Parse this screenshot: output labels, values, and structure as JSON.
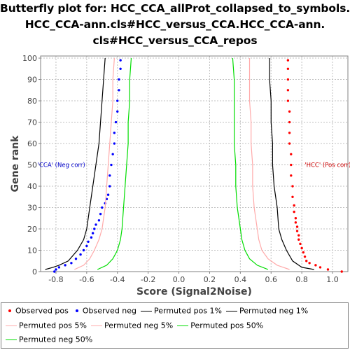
{
  "title_lines": [
    "Butterfly plot for: HCC_CCA_allProt_collapsed_to_symbols.",
    "HCC_CCA-ann.cls#HCC_versus_CCA.HCC_CCA-ann.",
    "cls#HCC_versus_CCA_repos"
  ],
  "chart_data": {
    "type": "scatter",
    "xlabel": "Score (Signal2Noise)",
    "ylabel": "Gene rank",
    "xlim": [
      -0.9,
      1.1
    ],
    "ylim": [
      0,
      101
    ],
    "x_ticks": [
      -0.8,
      -0.6,
      -0.4,
      -0.2,
      0.0,
      0.2,
      0.4,
      0.6,
      0.8,
      1.0
    ],
    "x_tick_labels": [
      "-0.8",
      "-0.6",
      "-0.4",
      "-0.2",
      "0.0",
      "0.2",
      "0.4",
      "0.6",
      "0.8",
      "1.0"
    ],
    "y_ticks": [
      0,
      10,
      20,
      30,
      40,
      50,
      60,
      70,
      80,
      90,
      100
    ],
    "y_tick_labels": [
      "0",
      "10",
      "20",
      "30",
      "40",
      "50",
      "60",
      "70",
      "80",
      "90",
      "100"
    ],
    "grid": true,
    "annotations": [
      {
        "text": "'CCA' (Neg corr)",
        "x": -0.92,
        "y": 50,
        "color": "#0000cc",
        "align": "left"
      },
      {
        "text": "'HCC' (Pos corr)",
        "x": 1.12,
        "y": 50,
        "color": "#cc0000",
        "align": "right"
      }
    ],
    "series": [
      {
        "name": "Observed pos",
        "kind": "points",
        "color": "#ff0000",
        "points": [
          [
            1.06,
            0
          ],
          [
            0.97,
            1
          ],
          [
            0.92,
            2
          ],
          [
            0.89,
            3
          ],
          [
            0.85,
            4
          ],
          [
            0.83,
            5
          ],
          [
            0.82,
            7
          ],
          [
            0.81,
            9
          ],
          [
            0.8,
            11
          ],
          [
            0.79,
            13
          ],
          [
            0.78,
            15
          ],
          [
            0.78,
            17
          ],
          [
            0.77,
            19
          ],
          [
            0.77,
            21
          ],
          [
            0.76,
            23
          ],
          [
            0.76,
            25
          ],
          [
            0.75,
            28
          ],
          [
            0.75,
            31
          ],
          [
            0.74,
            35
          ],
          [
            0.74,
            40
          ],
          [
            0.73,
            45
          ],
          [
            0.73,
            50
          ],
          [
            0.73,
            55
          ],
          [
            0.72,
            60
          ],
          [
            0.72,
            65
          ],
          [
            0.72,
            70
          ],
          [
            0.72,
            75
          ],
          [
            0.71,
            80
          ],
          [
            0.71,
            85
          ],
          [
            0.71,
            90
          ],
          [
            0.71,
            95
          ],
          [
            0.71,
            99
          ]
        ]
      },
      {
        "name": "Observed neg",
        "kind": "points",
        "color": "#0000ff",
        "points": [
          [
            -0.81,
            0
          ],
          [
            -0.8,
            1
          ],
          [
            -0.78,
            2
          ],
          [
            -0.74,
            3
          ],
          [
            -0.7,
            4
          ],
          [
            -0.67,
            6
          ],
          [
            -0.64,
            8
          ],
          [
            -0.62,
            10
          ],
          [
            -0.6,
            12
          ],
          [
            -0.59,
            14
          ],
          [
            -0.57,
            16
          ],
          [
            -0.56,
            18
          ],
          [
            -0.55,
            20
          ],
          [
            -0.54,
            22
          ],
          [
            -0.52,
            24
          ],
          [
            -0.51,
            27
          ],
          [
            -0.5,
            30
          ],
          [
            -0.48,
            32
          ],
          [
            -0.47,
            34
          ],
          [
            -0.46,
            36
          ],
          [
            -0.45,
            40
          ],
          [
            -0.45,
            45
          ],
          [
            -0.44,
            50
          ],
          [
            -0.43,
            55
          ],
          [
            -0.42,
            60
          ],
          [
            -0.42,
            65
          ],
          [
            -0.41,
            70
          ],
          [
            -0.4,
            75
          ],
          [
            -0.4,
            80
          ],
          [
            -0.39,
            85
          ],
          [
            -0.39,
            90
          ],
          [
            -0.38,
            95
          ],
          [
            -0.38,
            99
          ]
        ]
      },
      {
        "name": "Permuted pos 1%",
        "kind": "line",
        "color": "#000000",
        "points": [
          [
            0.88,
            1
          ],
          [
            0.8,
            2
          ],
          [
            0.74,
            5
          ],
          [
            0.7,
            10
          ],
          [
            0.67,
            15
          ],
          [
            0.65,
            20
          ],
          [
            0.64,
            30
          ],
          [
            0.62,
            40
          ],
          [
            0.61,
            50
          ],
          [
            0.61,
            60
          ],
          [
            0.6,
            70
          ],
          [
            0.6,
            80
          ],
          [
            0.59,
            90
          ],
          [
            0.59,
            100
          ]
        ]
      },
      {
        "name": "Permuted neg 1%",
        "kind": "line",
        "color": "#000000",
        "points": [
          [
            -0.87,
            1
          ],
          [
            -0.82,
            2
          ],
          [
            -0.78,
            3
          ],
          [
            -0.72,
            5
          ],
          [
            -0.66,
            10
          ],
          [
            -0.62,
            15
          ],
          [
            -0.6,
            20
          ],
          [
            -0.58,
            30
          ],
          [
            -0.56,
            40
          ],
          [
            -0.54,
            50
          ],
          [
            -0.52,
            60
          ],
          [
            -0.51,
            70
          ],
          [
            -0.5,
            80
          ],
          [
            -0.49,
            90
          ],
          [
            -0.48,
            100
          ]
        ]
      },
      {
        "name": "Permuted pos 5%",
        "kind": "line",
        "color": "#ffaaaa",
        "points": [
          [
            0.72,
            1
          ],
          [
            0.64,
            3
          ],
          [
            0.58,
            6
          ],
          [
            0.54,
            10
          ],
          [
            0.52,
            15
          ],
          [
            0.51,
            20
          ],
          [
            0.49,
            30
          ],
          [
            0.48,
            40
          ],
          [
            0.48,
            50
          ],
          [
            0.47,
            60
          ],
          [
            0.47,
            70
          ],
          [
            0.46,
            80
          ],
          [
            0.46,
            90
          ],
          [
            0.46,
            100
          ]
        ]
      },
      {
        "name": "Permuted neg 5%",
        "kind": "line",
        "color": "#ffaaaa",
        "points": [
          [
            -0.68,
            1
          ],
          [
            -0.62,
            3
          ],
          [
            -0.58,
            6
          ],
          [
            -0.55,
            10
          ],
          [
            -0.52,
            15
          ],
          [
            -0.5,
            20
          ],
          [
            -0.48,
            30
          ],
          [
            -0.47,
            40
          ],
          [
            -0.46,
            50
          ],
          [
            -0.45,
            60
          ],
          [
            -0.44,
            70
          ],
          [
            -0.43,
            80
          ],
          [
            -0.43,
            90
          ],
          [
            -0.42,
            100
          ]
        ]
      },
      {
        "name": "Permuted pos 50%",
        "kind": "line",
        "color": "#00dd00",
        "points": [
          [
            0.58,
            1
          ],
          [
            0.51,
            3
          ],
          [
            0.46,
            6
          ],
          [
            0.43,
            10
          ],
          [
            0.41,
            15
          ],
          [
            0.4,
            20
          ],
          [
            0.38,
            30
          ],
          [
            0.37,
            40
          ],
          [
            0.37,
            50
          ],
          [
            0.36,
            60
          ],
          [
            0.36,
            70
          ],
          [
            0.36,
            80
          ],
          [
            0.36,
            90
          ],
          [
            0.35,
            100
          ]
        ]
      },
      {
        "name": "Permuted neg 50%",
        "kind": "line",
        "color": "#00dd00",
        "points": [
          [
            -0.53,
            1
          ],
          [
            -0.47,
            3
          ],
          [
            -0.43,
            6
          ],
          [
            -0.4,
            10
          ],
          [
            -0.38,
            15
          ],
          [
            -0.37,
            20
          ],
          [
            -0.36,
            30
          ],
          [
            -0.35,
            40
          ],
          [
            -0.34,
            50
          ],
          [
            -0.33,
            60
          ],
          [
            -0.33,
            70
          ],
          [
            -0.32,
            80
          ],
          [
            -0.32,
            90
          ],
          [
            -0.31,
            100
          ]
        ]
      }
    ]
  },
  "legend": {
    "rows": [
      [
        {
          "label": "Observed pos",
          "marker": "dot",
          "color": "#ff0000"
        },
        {
          "label": "Observed neg",
          "marker": "dot",
          "color": "#0000ff"
        },
        {
          "label": "Permuted pos 1%",
          "marker": "line",
          "color": "#000000"
        },
        {
          "label": "Permuted neg 1%",
          "marker": "line",
          "color": "#000000"
        }
      ],
      [
        {
          "label": "Permuted pos 5%",
          "marker": "line",
          "color": "#ffaaaa"
        },
        {
          "label": "Permuted neg 5%",
          "marker": "line",
          "color": "#ffaaaa"
        },
        {
          "label": "Permuted pos 50%",
          "marker": "line",
          "color": "#00dd00"
        }
      ],
      [
        {
          "label": "Permuted neg 50%",
          "marker": "line",
          "color": "#00dd00"
        }
      ]
    ]
  }
}
